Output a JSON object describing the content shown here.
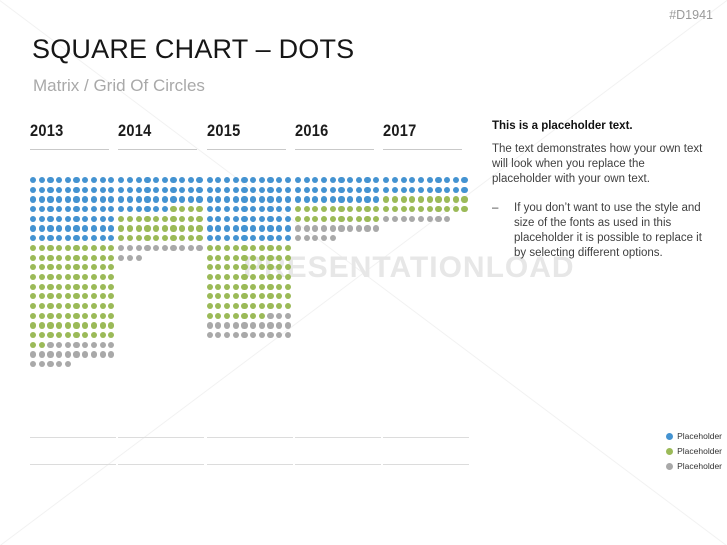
{
  "slide_id": "#D1941",
  "header": {
    "title": "SQUARE CHART – DOTS",
    "subtitle": "Matrix / Grid Of Circles"
  },
  "colors": {
    "b": "#4493d1",
    "g": "#9bba58",
    "x": "#a9a9a9"
  },
  "watermark": {
    "text": "PRESENTATIONLOAD"
  },
  "chart": {
    "columns": [
      {
        "year": "2013",
        "rows": [
          "bbbbbbbbbb",
          "bbbbbbbbbb",
          "bbbbbbbbbb",
          "bbbbbbbbbb",
          "bbbbbbbbbb",
          "bbbbbbbbbb",
          "bbbbbbbbbb",
          "gggggggggg",
          "gggggggggg",
          "gggggggggg",
          "gggggggggg",
          "gggggggggg",
          "gggggggggg",
          "gggggggggg",
          "gggggggggg",
          "gggggggggg",
          "gggggggggg",
          "ggxxxxxxxx",
          "xxxxxxxxxx",
          "xxxxx"
        ]
      },
      {
        "year": "2014",
        "rows": [
          "bbbbbbbbbb",
          "bbbbbbbbbb",
          "bbbbbbbbbb",
          "bbbbbbgggg",
          "gggggggggg",
          "gggggggggg",
          "gggggggggg",
          "xxxxxxxxxx",
          "xxx"
        ]
      },
      {
        "year": "2015",
        "rows": [
          "bbbbbbbbbb",
          "bbbbbbbbbb",
          "bbbbbbbbbb",
          "bbbbbbbbbb",
          "bbbbbbbbbb",
          "bbbbbbbbbb",
          "bbbbbbbbbb",
          "gggggggggg",
          "gggggggggg",
          "gggggggggg",
          "gggggggggg",
          "gggggggggg",
          "gggggggggg",
          "gggggggggg",
          "gggggggxxx",
          "xxxxxxxxxx",
          "xxxxxxxxxx"
        ]
      },
      {
        "year": "2016",
        "rows": [
          "bbbbbbbbbb",
          "bbbbbbbbbb",
          "bbbbbbbbbb",
          "gggggggggg",
          "gggggggggg",
          "xxxxxxxxxx",
          "xxxxx"
        ]
      },
      {
        "year": "2017",
        "rows": [
          "bbbbbbbbbb",
          "bbbbbbbbbb",
          "gggggggggg",
          "gggggggggg",
          "xxxxxxxx"
        ]
      }
    ]
  },
  "chart_data": {
    "type": "dot-matrix-unit-chart",
    "title": "SQUARE CHART – DOTS",
    "subtitle": "Matrix / Grid Of Circles",
    "categories": [
      "2013",
      "2014",
      "2015",
      "2016",
      "2017"
    ],
    "dots_per_row": 10,
    "series": [
      {
        "name": "Placeholder (blue)",
        "color": "#4493d1",
        "values": [
          70,
          36,
          70,
          30,
          20
        ]
      },
      {
        "name": "Placeholder (green)",
        "color": "#9bba58",
        "values": [
          102,
          34,
          77,
          20,
          20
        ]
      },
      {
        "name": "Placeholder (gray)",
        "color": "#a9a9a9",
        "values": [
          23,
          13,
          23,
          15,
          8
        ]
      }
    ],
    "totals_per_category": [
      195,
      83,
      170,
      65,
      48
    ],
    "legend_position": "bottom-right",
    "grid": "off"
  },
  "side_panel": {
    "heading": "This is a placeholder text.",
    "paragraph": "The text demonstrates how your own text will look when you replace the placeholder with your own text.",
    "bullet_dash": "–",
    "bullet_text": "If you don’t want to use the style and size of the fonts as used in this placeholder it is possible to replace it by selecting different options."
  },
  "legend": {
    "items": [
      {
        "color": "b",
        "label": "Placeholder"
      },
      {
        "color": "g",
        "label": "Placeholder"
      },
      {
        "color": "x",
        "label": "Placeholder"
      }
    ]
  }
}
